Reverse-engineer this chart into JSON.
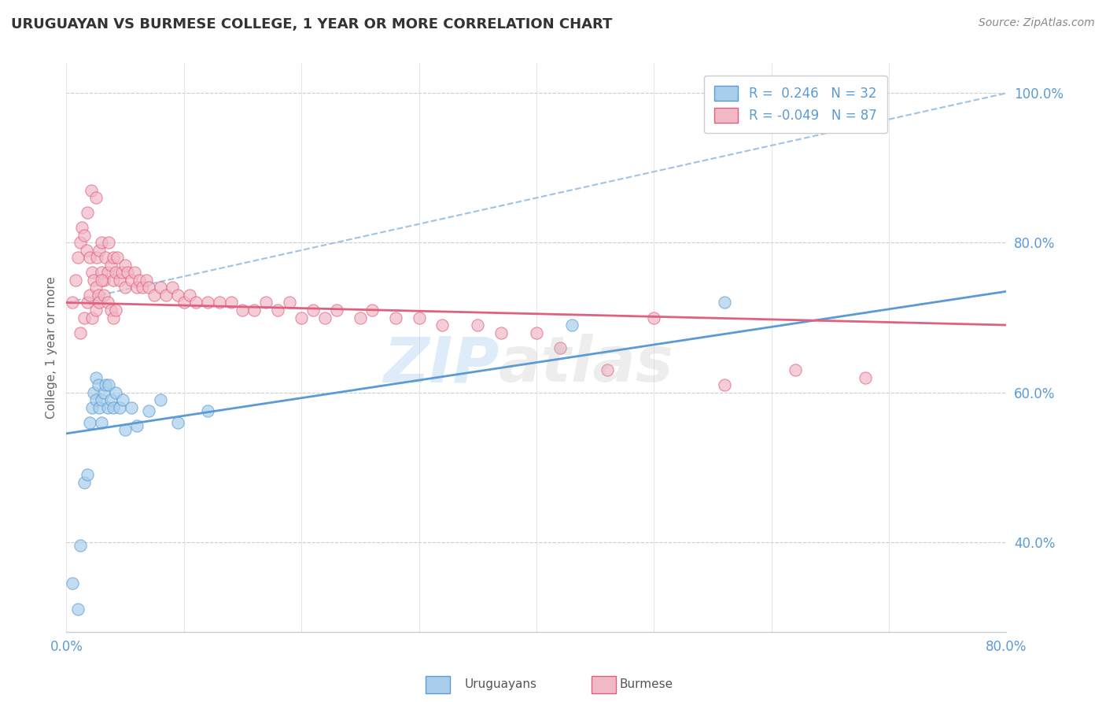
{
  "title": "URUGUAYAN VS BURMESE COLLEGE, 1 YEAR OR MORE CORRELATION CHART",
  "source_text": "Source: ZipAtlas.com",
  "ylabel": "College, 1 year or more",
  "xlim": [
    0.0,
    0.8
  ],
  "ylim": [
    0.28,
    1.04
  ],
  "yticks": [
    0.4,
    0.6,
    0.8,
    1.0
  ],
  "ytick_labels": [
    "40.0%",
    "60.0%",
    "80.0%",
    "100.0%"
  ],
  "xticks": [
    0.0,
    0.1,
    0.2,
    0.3,
    0.4,
    0.5,
    0.6,
    0.7,
    0.8
  ],
  "xtick_labels": [
    "0.0%",
    "",
    "",
    "",
    "",
    "",
    "",
    "",
    "80.0%"
  ],
  "legend_r1": "R =  0.246   N = 32",
  "legend_r2": "R = -0.049   N = 87",
  "blue_color": "#A8CEEC",
  "pink_color": "#F2B8C6",
  "line_blue": "#5B9BD5",
  "line_pink": "#E06080",
  "ref_line_color": "#9DC3E6",
  "grid_color": "#CCCCCC",
  "watermark_zip": "#7EB6E8",
  "watermark_atlas": "#AAAAAA",
  "uruguayan_x": [
    0.005,
    0.01,
    0.012,
    0.015,
    0.018,
    0.02,
    0.022,
    0.023,
    0.025,
    0.025,
    0.027,
    0.028,
    0.03,
    0.03,
    0.032,
    0.033,
    0.035,
    0.036,
    0.038,
    0.04,
    0.042,
    0.045,
    0.048,
    0.05,
    0.055,
    0.06,
    0.07,
    0.08,
    0.095,
    0.12,
    0.43,
    0.56
  ],
  "uruguayan_y": [
    0.345,
    0.31,
    0.395,
    0.48,
    0.49,
    0.56,
    0.58,
    0.6,
    0.59,
    0.62,
    0.61,
    0.58,
    0.59,
    0.56,
    0.6,
    0.61,
    0.58,
    0.61,
    0.59,
    0.58,
    0.6,
    0.58,
    0.59,
    0.55,
    0.58,
    0.555,
    0.575,
    0.59,
    0.56,
    0.575,
    0.69,
    0.72
  ],
  "burmese_x": [
    0.005,
    0.008,
    0.01,
    0.012,
    0.013,
    0.015,
    0.017,
    0.018,
    0.02,
    0.021,
    0.022,
    0.023,
    0.025,
    0.026,
    0.028,
    0.03,
    0.03,
    0.032,
    0.033,
    0.035,
    0.036,
    0.038,
    0.04,
    0.04,
    0.042,
    0.043,
    0.045,
    0.047,
    0.05,
    0.05,
    0.052,
    0.055,
    0.058,
    0.06,
    0.062,
    0.065,
    0.068,
    0.07,
    0.075,
    0.08,
    0.085,
    0.09,
    0.095,
    0.1,
    0.105,
    0.11,
    0.12,
    0.13,
    0.14,
    0.15,
    0.16,
    0.17,
    0.18,
    0.19,
    0.2,
    0.21,
    0.22,
    0.23,
    0.25,
    0.26,
    0.28,
    0.3,
    0.32,
    0.35,
    0.37,
    0.4,
    0.42,
    0.46,
    0.5,
    0.56,
    0.62,
    0.68,
    0.012,
    0.015,
    0.018,
    0.02,
    0.022,
    0.025,
    0.025,
    0.027,
    0.028,
    0.03,
    0.032,
    0.035,
    0.038,
    0.04,
    0.042
  ],
  "burmese_y": [
    0.72,
    0.75,
    0.78,
    0.8,
    0.82,
    0.81,
    0.79,
    0.84,
    0.78,
    0.87,
    0.76,
    0.75,
    0.86,
    0.78,
    0.79,
    0.76,
    0.8,
    0.75,
    0.78,
    0.76,
    0.8,
    0.77,
    0.75,
    0.78,
    0.76,
    0.78,
    0.75,
    0.76,
    0.74,
    0.77,
    0.76,
    0.75,
    0.76,
    0.74,
    0.75,
    0.74,
    0.75,
    0.74,
    0.73,
    0.74,
    0.73,
    0.74,
    0.73,
    0.72,
    0.73,
    0.72,
    0.72,
    0.72,
    0.72,
    0.71,
    0.71,
    0.72,
    0.71,
    0.72,
    0.7,
    0.71,
    0.7,
    0.71,
    0.7,
    0.71,
    0.7,
    0.7,
    0.69,
    0.69,
    0.68,
    0.68,
    0.66,
    0.63,
    0.7,
    0.61,
    0.63,
    0.62,
    0.68,
    0.7,
    0.72,
    0.73,
    0.7,
    0.71,
    0.74,
    0.73,
    0.72,
    0.75,
    0.73,
    0.72,
    0.71,
    0.7,
    0.71
  ],
  "blue_trend_x0": 0.0,
  "blue_trend_y0": 0.545,
  "blue_trend_x1": 0.8,
  "blue_trend_y1": 0.735,
  "pink_trend_x0": 0.0,
  "pink_trend_y0": 0.72,
  "pink_trend_x1": 0.8,
  "pink_trend_y1": 0.69,
  "ref_line_x0": 0.0,
  "ref_line_y0": 0.72,
  "ref_line_x1": 0.8,
  "ref_line_y1": 1.0
}
